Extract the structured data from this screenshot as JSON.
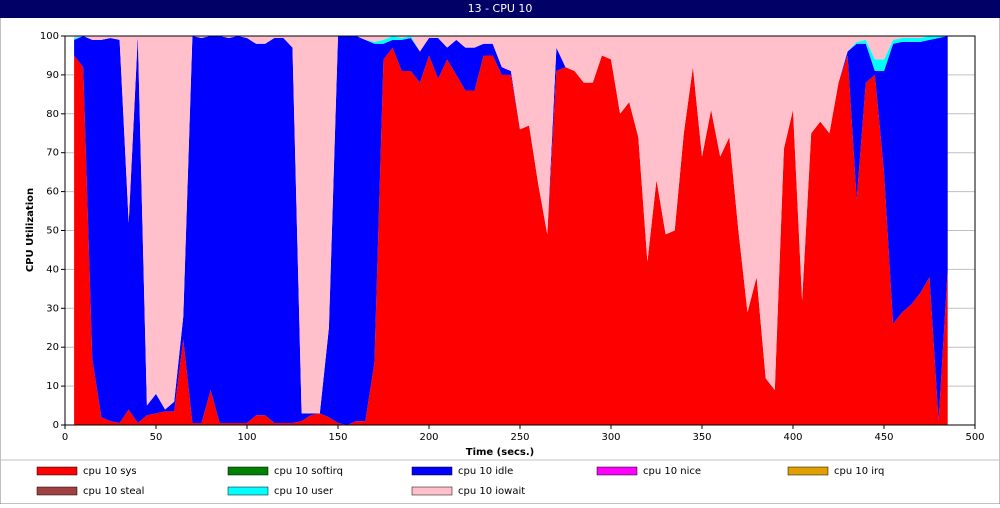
{
  "chart_data": {
    "type": "stacked-area",
    "title": "13 - CPU 10",
    "xlabel": "Time (secs.)",
    "ylabel": "CPU Utilization",
    "x": [
      5,
      10,
      15,
      20,
      25,
      30,
      35,
      40,
      45,
      50,
      55,
      60,
      65,
      70,
      75,
      80,
      85,
      90,
      95,
      100,
      105,
      110,
      115,
      120,
      125,
      130,
      135,
      140,
      145,
      150,
      155,
      160,
      165,
      170,
      175,
      180,
      185,
      190,
      195,
      200,
      205,
      210,
      215,
      220,
      225,
      230,
      235,
      240,
      245,
      250,
      255,
      260,
      265,
      270,
      275,
      280,
      285,
      290,
      295,
      300,
      305,
      310,
      315,
      320,
      325,
      330,
      335,
      340,
      345,
      350,
      355,
      360,
      365,
      370,
      375,
      380,
      385,
      390,
      395,
      400,
      405,
      410,
      415,
      420,
      425,
      430,
      435,
      440,
      445,
      450,
      455,
      460,
      465,
      470,
      475,
      480,
      485
    ],
    "series": [
      {
        "name": "cpu 10 sys",
        "color": "#ff0000",
        "values": [
          95,
          92,
          17,
          2,
          1,
          0.5,
          4,
          0.5,
          2.5,
          3,
          3.5,
          3.5,
          22,
          0.5,
          0.5,
          9,
          0.5,
          0.5,
          0.5,
          0.5,
          2.5,
          2.5,
          0.5,
          0.5,
          0.5,
          1,
          2.5,
          3,
          2,
          0.5,
          0,
          1,
          1,
          16,
          94,
          97,
          91,
          91,
          88,
          95,
          89,
          94,
          90,
          86,
          86,
          95,
          95,
          90,
          90,
          76,
          77,
          62,
          49,
          91,
          92,
          91,
          88,
          88,
          95,
          94,
          80,
          83,
          74,
          42,
          63,
          49,
          50,
          75,
          92,
          69,
          81,
          69,
          74,
          50,
          29,
          38,
          12,
          9,
          71,
          81,
          32,
          75,
          78,
          75,
          88,
          95,
          58,
          88,
          90,
          65,
          26,
          29,
          31,
          34,
          38,
          1,
          40
        ]
      },
      {
        "name": "cpu 10 softirq",
        "color": "#008000",
        "values": [
          0,
          0,
          0,
          0,
          0,
          0,
          0,
          0,
          0,
          0,
          0,
          0,
          0,
          0,
          0,
          0,
          0,
          0,
          0,
          0,
          0,
          0,
          0,
          0,
          0,
          0,
          0,
          0,
          0,
          0,
          0,
          0,
          0,
          0,
          0,
          0,
          0,
          0,
          0,
          0,
          0,
          0,
          0,
          0,
          0,
          0,
          0,
          0,
          0,
          0,
          0,
          0,
          0,
          0,
          0,
          0,
          0,
          0,
          0,
          0,
          0,
          0,
          0,
          0,
          0,
          0,
          0,
          0,
          0,
          0,
          0,
          0,
          0,
          0,
          0,
          0,
          0,
          0,
          0,
          0,
          0,
          0,
          0,
          0,
          0,
          0,
          0,
          0,
          0,
          0,
          0,
          0,
          0,
          0,
          0,
          0,
          0
        ]
      },
      {
        "name": "cpu 10 idle",
        "color": "#0000ff",
        "values": [
          4,
          8,
          82,
          97,
          98.5,
          98.5,
          48,
          99.5,
          2.5,
          5,
          0.5,
          2.5,
          6,
          99.5,
          99,
          91,
          99.5,
          99,
          99.5,
          99,
          95.5,
          95.5,
          99,
          99,
          96.5,
          2,
          0.5,
          0,
          23,
          99.5,
          100,
          99,
          98,
          82,
          4,
          2,
          8,
          8.5,
          8,
          4.5,
          10.5,
          3,
          9,
          11,
          11,
          3,
          3,
          2,
          1,
          0,
          0,
          0,
          0,
          6,
          0,
          0,
          0,
          0,
          0,
          0,
          0,
          0,
          0,
          0,
          0,
          0,
          0,
          0,
          0,
          0,
          0,
          0,
          0,
          0,
          0,
          0,
          0,
          0,
          0,
          0,
          0,
          0,
          0,
          0,
          0,
          1,
          40,
          10,
          1,
          26,
          72,
          69.5,
          67.5,
          64.5,
          61,
          98.5,
          60
        ]
      },
      {
        "name": "cpu 10 nice",
        "color": "#ff00ff",
        "values": [
          0,
          0,
          0,
          0,
          0,
          0,
          0,
          0,
          0,
          0,
          0,
          0,
          0,
          0,
          0,
          0,
          0,
          0,
          0,
          0,
          0,
          0,
          0,
          0,
          0,
          0,
          0,
          0,
          0,
          0,
          0,
          0,
          0,
          0,
          0,
          0,
          0,
          0,
          0,
          0,
          0,
          0,
          0,
          0,
          0,
          0,
          0,
          0,
          0,
          0,
          0,
          0,
          0,
          0,
          0,
          0,
          0,
          0,
          0,
          0,
          0,
          0,
          0,
          0,
          0,
          0,
          0,
          0,
          0,
          0,
          0,
          0,
          0,
          0,
          0,
          0,
          0,
          0,
          0,
          0,
          0,
          0,
          0,
          0,
          0,
          0,
          0,
          0,
          0,
          0,
          0,
          0,
          0,
          0,
          0,
          0,
          0
        ]
      },
      {
        "name": "cpu 10 irq",
        "color": "#e0a000",
        "values": [
          0,
          0,
          0,
          0,
          0,
          0,
          0,
          0,
          0,
          0,
          0,
          0,
          0,
          0,
          0,
          0,
          0,
          0,
          0,
          0,
          0,
          0,
          0,
          0,
          0,
          0,
          0,
          0,
          0,
          0,
          0,
          0,
          0,
          0,
          0,
          0,
          0,
          0,
          0,
          0,
          0,
          0,
          0,
          0,
          0,
          0,
          0,
          0,
          0,
          0,
          0,
          0,
          0,
          0,
          0,
          0,
          0,
          0,
          0,
          0,
          0,
          0,
          0,
          0,
          0,
          0,
          0,
          0,
          0,
          0,
          0,
          0,
          0,
          0,
          0,
          0,
          0,
          0,
          0,
          0,
          0,
          0,
          0,
          0,
          0,
          0,
          0,
          0,
          0,
          0,
          0,
          0,
          0,
          0,
          0,
          0,
          0
        ]
      },
      {
        "name": "cpu 10 steal",
        "color": "#a04040",
        "values": [
          0,
          0,
          0,
          0,
          0,
          0,
          0,
          0,
          0,
          0,
          0,
          0,
          0,
          0,
          0,
          0,
          0,
          0,
          0,
          0,
          0,
          0,
          0,
          0,
          0,
          0,
          0,
          0,
          0,
          0,
          0,
          0,
          0,
          0,
          0,
          0,
          0,
          0,
          0,
          0,
          0,
          0,
          0,
          0,
          0,
          0,
          0,
          0,
          0,
          0,
          0,
          0,
          0,
          0,
          0,
          0,
          0,
          0,
          0,
          0,
          0,
          0,
          0,
          0,
          0,
          0,
          0,
          0,
          0,
          0,
          0,
          0,
          0,
          0,
          0,
          0,
          0,
          0,
          0,
          0,
          0,
          0,
          0,
          0,
          0,
          0,
          0,
          0,
          0,
          0,
          0,
          0,
          0,
          0,
          0,
          0,
          0
        ]
      },
      {
        "name": "cpu 10 user",
        "color": "#00ffff",
        "values": [
          0.5,
          0,
          0,
          0,
          0,
          0,
          0,
          0,
          0,
          0,
          0,
          0,
          0,
          0,
          0,
          0,
          0,
          0,
          0,
          0,
          0,
          0,
          0,
          0,
          0,
          0,
          0,
          0,
          0,
          0,
          0,
          0,
          0,
          0.5,
          1,
          1,
          0.5,
          0.5,
          0,
          0,
          0,
          0,
          0,
          0,
          0,
          0,
          0,
          0,
          0,
          0,
          0,
          0,
          0,
          0,
          0,
          0,
          0,
          0,
          0,
          0,
          0,
          0,
          0,
          0,
          0,
          0,
          0,
          0,
          0,
          0,
          0,
          0,
          0,
          0,
          0,
          0,
          0,
          0,
          0,
          0,
          0,
          0,
          0,
          0,
          0,
          0,
          0.5,
          1,
          3,
          3,
          1,
          1,
          1,
          1,
          1,
          0.5,
          0
        ]
      },
      {
        "name": "cpu 10 iowait",
        "color": "#ffc0cb",
        "values": [
          0.5,
          0,
          1,
          1,
          0.5,
          1,
          48,
          0,
          95,
          92,
          96,
          94,
          72,
          0,
          0.5,
          0,
          0,
          0.5,
          0,
          0.5,
          2,
          2,
          0.5,
          0.5,
          3,
          97,
          97,
          97,
          75,
          0,
          0,
          0,
          1,
          1.5,
          1,
          0,
          0.5,
          0,
          4,
          0.5,
          0.5,
          3,
          1,
          3,
          3,
          2,
          2,
          8,
          9,
          24,
          23,
          38,
          51,
          3,
          8,
          9,
          12,
          12,
          5,
          6,
          20,
          17,
          26,
          58,
          37,
          51,
          50,
          25,
          8,
          31,
          19,
          31,
          26,
          50,
          71,
          62,
          88,
          91,
          29,
          19,
          68,
          25,
          22,
          25,
          12,
          4,
          1.5,
          1,
          6,
          6,
          1,
          0.5,
          0.5,
          0.5,
          0,
          0,
          0
        ]
      }
    ],
    "xlim": [
      0,
      500
    ],
    "xticks": [
      0,
      50,
      100,
      150,
      200,
      250,
      300,
      350,
      400,
      450,
      500
    ],
    "ylim": [
      0,
      100
    ],
    "yticks": [
      0,
      10,
      20,
      30,
      40,
      50,
      60,
      70,
      80,
      90,
      100
    ],
    "grid": true
  }
}
